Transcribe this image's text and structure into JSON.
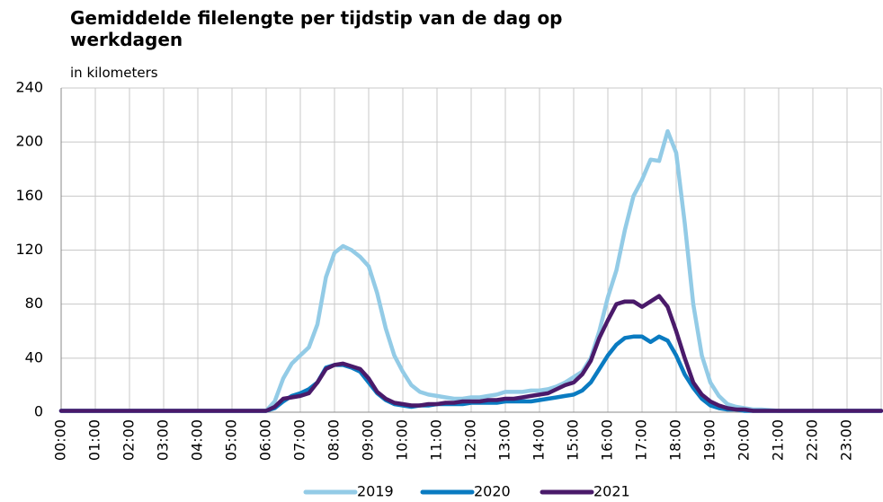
{
  "chart_data": {
    "type": "line",
    "title": "Gemiddelde filelengte per tijdstip van de dag op werkdagen",
    "subtitle": "in kilometers",
    "x": [
      0,
      1,
      2,
      3,
      4,
      5,
      5.5,
      5.75,
      6,
      6.25,
      6.5,
      6.75,
      7,
      7.25,
      7.5,
      7.75,
      8,
      8.25,
      8.5,
      8.75,
      9,
      9.25,
      9.5,
      9.75,
      10,
      10.25,
      10.5,
      10.75,
      11,
      11.25,
      11.5,
      11.75,
      12,
      12.25,
      12.5,
      12.75,
      13,
      13.25,
      13.5,
      13.75,
      14,
      14.25,
      14.5,
      14.75,
      15,
      15.25,
      15.5,
      15.75,
      16,
      16.25,
      16.5,
      16.75,
      17,
      17.25,
      17.5,
      17.75,
      18,
      18.25,
      18.5,
      18.75,
      19,
      19.25,
      19.5,
      19.75,
      20,
      20.25,
      20.5,
      21,
      22,
      23,
      24
    ],
    "series": [
      {
        "name": "2019",
        "color": "#93cbe6",
        "values": [
          1,
          1,
          1,
          1,
          1,
          1,
          1,
          1,
          1,
          8,
          25,
          36,
          42,
          48,
          65,
          100,
          118,
          123,
          120,
          115,
          108,
          88,
          62,
          42,
          30,
          20,
          15,
          13,
          12,
          11,
          10,
          10,
          11,
          11,
          12,
          13,
          15,
          15,
          15,
          16,
          16,
          17,
          19,
          22,
          26,
          30,
          40,
          60,
          85,
          105,
          135,
          160,
          172,
          187,
          186,
          208,
          192,
          140,
          80,
          42,
          22,
          12,
          6,
          4,
          3,
          2,
          2,
          1,
          1,
          1,
          1
        ]
      },
      {
        "name": "2020",
        "color": "#0a7bc1",
        "values": [
          1,
          1,
          1,
          1,
          1,
          1,
          1,
          1,
          1,
          3,
          8,
          12,
          14,
          17,
          22,
          33,
          35,
          35,
          33,
          30,
          22,
          14,
          9,
          6,
          5,
          4,
          5,
          5,
          6,
          6,
          6,
          6,
          7,
          7,
          7,
          7,
          8,
          8,
          8,
          8,
          9,
          10,
          11,
          12,
          13,
          16,
          22,
          32,
          42,
          50,
          55,
          56,
          56,
          52,
          56,
          53,
          42,
          28,
          18,
          10,
          5,
          3,
          2,
          2,
          1,
          1,
          1,
          1,
          1,
          1,
          1
        ]
      },
      {
        "name": "2021",
        "color": "#4a1a6a",
        "values": [
          1,
          1,
          1,
          1,
          1,
          1,
          1,
          1,
          1,
          4,
          10,
          11,
          12,
          14,
          22,
          32,
          35,
          36,
          34,
          32,
          25,
          15,
          10,
          7,
          6,
          5,
          5,
          6,
          6,
          7,
          7,
          8,
          8,
          8,
          9,
          9,
          10,
          10,
          11,
          12,
          13,
          14,
          17,
          20,
          22,
          28,
          38,
          55,
          68,
          80,
          82,
          82,
          78,
          82,
          86,
          78,
          60,
          40,
          22,
          13,
          8,
          5,
          3,
          2,
          2,
          1,
          1,
          1,
          1,
          1,
          1
        ]
      }
    ],
    "xlim": [
      0,
      24
    ],
    "xticks": [
      {
        "value": 0,
        "label": "00:00"
      },
      {
        "value": 1,
        "label": "01:00"
      },
      {
        "value": 2,
        "label": "02:00"
      },
      {
        "value": 3,
        "label": "03:00"
      },
      {
        "value": 4,
        "label": "04:00"
      },
      {
        "value": 5,
        "label": "05:00"
      },
      {
        "value": 6,
        "label": "06:00"
      },
      {
        "value": 7,
        "label": "07:00"
      },
      {
        "value": 8,
        "label": "08:00"
      },
      {
        "value": 9,
        "label": "09:00"
      },
      {
        "value": 10,
        "label": "10:00"
      },
      {
        "value": 11,
        "label": "11:00"
      },
      {
        "value": 12,
        "label": "12:00"
      },
      {
        "value": 13,
        "label": "13:00"
      },
      {
        "value": 14,
        "label": "14:00"
      },
      {
        "value": 15,
        "label": "15:00"
      },
      {
        "value": 16,
        "label": "16:00"
      },
      {
        "value": 17,
        "label": "17:00"
      },
      {
        "value": 18,
        "label": "18:00"
      },
      {
        "value": 19,
        "label": "19:00"
      },
      {
        "value": 20,
        "label": "20:00"
      },
      {
        "value": 21,
        "label": "21:00"
      },
      {
        "value": 22,
        "label": "22:00"
      },
      {
        "value": 23,
        "label": "23:00"
      }
    ],
    "ylim": [
      0,
      240
    ],
    "yticks": [
      0,
      40,
      80,
      120,
      160,
      200,
      240
    ],
    "grid": true,
    "legend": "bottom"
  }
}
